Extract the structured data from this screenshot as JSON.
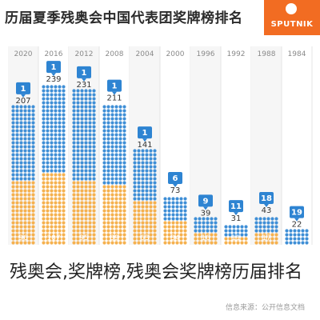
{
  "header": {
    "title": "历届夏季残奥会中国代表团奖牌榜排名",
    "brand": "SPUTNIK"
  },
  "caption": "残奥会,奖牌榜,残奥会奖牌榜历届排名",
  "source": "信息来源：公开信息文档",
  "colors": {
    "total_dots": "#3f8fd6",
    "gold_dots": "#f5b14f",
    "rank_badge": "#2e84d2",
    "brand": "#f26c22"
  },
  "chart_data": {
    "type": "bar",
    "title": "历届夏季残奥会中国代表团奖牌榜排名",
    "categories": [
      "2020",
      "2016",
      "2012",
      "2008",
      "2004",
      "2000",
      "1996",
      "1992",
      "1988",
      "1984"
    ],
    "series": [
      {
        "values": [
          207,
          239,
          231,
          211,
          141,
          73,
          39,
          31,
          43,
          22
        ]
      },
      {
        "values": [
          96,
          107,
          95,
          89,
          63,
          34,
          16,
          11,
          17,
          2
        ]
      }
    ],
    "ranks": [
      1,
      1,
      1,
      1,
      1,
      6,
      9,
      11,
      18,
      19
    ],
    "legend": "none",
    "grid": false
  }
}
